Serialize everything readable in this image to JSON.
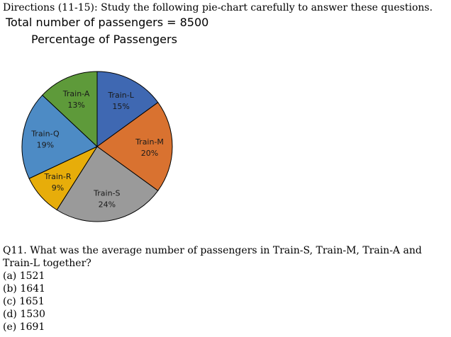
{
  "header": {
    "directions": "Directions (11-15): Study the following pie-chart carefully to answer these questions."
  },
  "chart_data": {
    "type": "pie",
    "title": "Total number of passengers = 8500",
    "subtitle": "Percentage of Passengers",
    "slices": [
      {
        "label": "Train-L",
        "value": 15,
        "value_label": "15%",
        "color": "#3f68b2"
      },
      {
        "label": "Train-M",
        "value": 20,
        "value_label": "20%",
        "color": "#d97230"
      },
      {
        "label": "Train-S",
        "value": 24,
        "value_label": "24%",
        "color": "#9a9a9a"
      },
      {
        "label": "Train-R",
        "value": 9,
        "value_label": "9%",
        "color": "#e7ad0a"
      },
      {
        "label": "Train-Q",
        "value": 19,
        "value_label": "19%",
        "color": "#4d8bc5"
      },
      {
        "label": "Train-A",
        "value": 13,
        "value_label": "13%",
        "color": "#5e9a3a"
      }
    ]
  },
  "question": {
    "text": "Q11. What was the average number of passengers in Train-S, Train-M, Train-A and Train-L together?",
    "options": [
      "(a) 1521",
      "(b) 1641",
      "(c) 1651",
      "(d) 1530",
      "(e) 1691"
    ]
  }
}
